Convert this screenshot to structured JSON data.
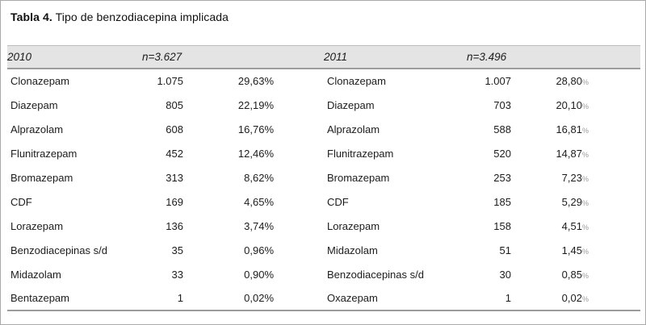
{
  "figure": {
    "title_bold": "Tabla 4.",
    "title_rest": "Tipo de benzodiacepina implicada"
  },
  "table": {
    "percent_symbol": "%",
    "groups": [
      {
        "year": "2010",
        "n_label": "n=3.627",
        "rows": [
          {
            "name": "Clonazepam",
            "count": "1.075",
            "pct": "29,63"
          },
          {
            "name": "Diazepam",
            "count": "805",
            "pct": "22,19"
          },
          {
            "name": "Alprazolam",
            "count": "608",
            "pct": "16,76"
          },
          {
            "name": "Flunitrazepam",
            "count": "452",
            "pct": "12,46"
          },
          {
            "name": "Bromazepam",
            "count": "313",
            "pct": "8,62"
          },
          {
            "name": "CDF",
            "count": "169",
            "pct": "4,65"
          },
          {
            "name": "Lorazepam",
            "count": "136",
            "pct": "3,74"
          },
          {
            "name": "Benzodiacepinas s/d",
            "count": "35",
            "pct": "0,96"
          },
          {
            "name": "Midazolam",
            "count": "33",
            "pct": "0,90"
          },
          {
            "name": "Bentazepam",
            "count": "1",
            "pct": "0,02"
          }
        ]
      },
      {
        "year": "2011",
        "n_label": "n=3.496",
        "rows": [
          {
            "name": "Clonazepam",
            "count": "1.007",
            "pct": "28,80"
          },
          {
            "name": "Diazepam",
            "count": "703",
            "pct": "20,10"
          },
          {
            "name": "Alprazolam",
            "count": "588",
            "pct": "16,81"
          },
          {
            "name": "Flunitrazepam",
            "count": "520",
            "pct": "14,87"
          },
          {
            "name": "Bromazepam",
            "count": "253",
            "pct": "7,23"
          },
          {
            "name": "CDF",
            "count": "185",
            "pct": "5,29"
          },
          {
            "name": "Lorazepam",
            "count": "158",
            "pct": "4,51"
          },
          {
            "name": "Midazolam",
            "count": "51",
            "pct": "1,45"
          },
          {
            "name": "Benzodiacepinas s/d",
            "count": "30",
            "pct": "0,85"
          },
          {
            "name": "Oxazepam",
            "count": "1",
            "pct": "0,02"
          }
        ]
      }
    ]
  },
  "colors": {
    "header_bg": "#e4e4e4",
    "rule": "#9c9c9c",
    "frame_border": "#a9a9a9",
    "text": "#1c1c1c",
    "pct_small": "#9b9b9b"
  }
}
